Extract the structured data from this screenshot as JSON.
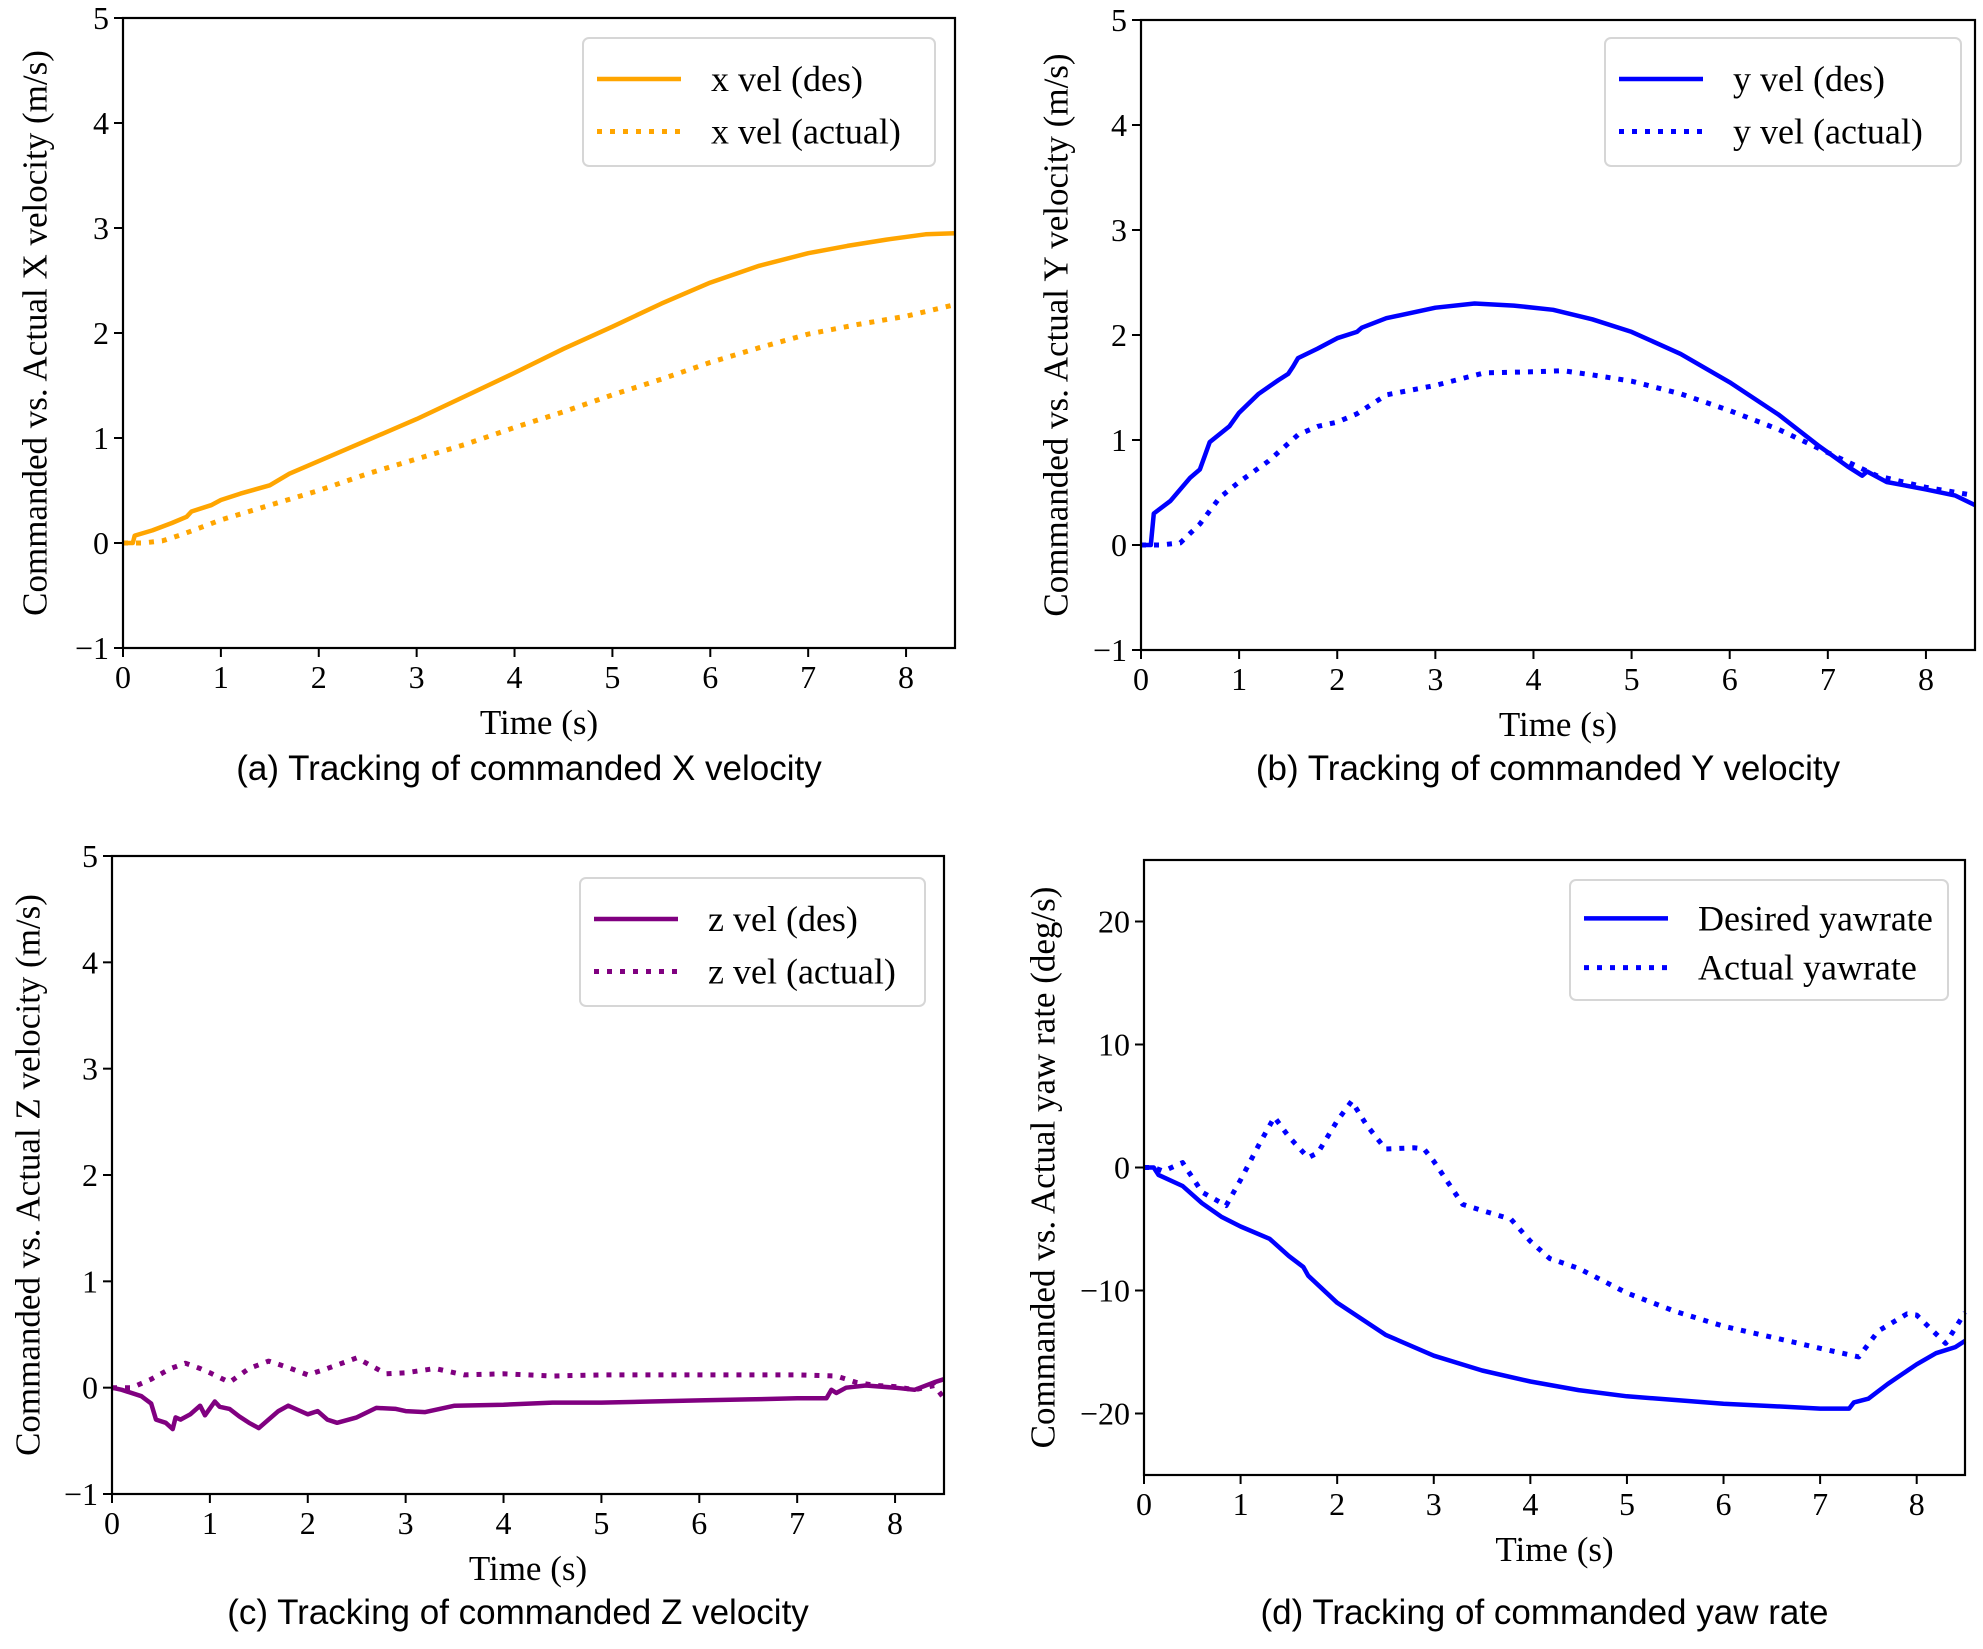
{
  "chart_data": [
    {
      "id": "a",
      "type": "line",
      "caption": "(a) Tracking of commanded X velocity",
      "title": "",
      "xlabel": "Time (s)",
      "ylabel": "Commanded vs. Actual X velocity (m/s)",
      "xlim": [
        0,
        8.5
      ],
      "ylim": [
        -1,
        5
      ],
      "xticks": [
        0,
        1,
        2,
        3,
        4,
        5,
        6,
        7,
        8
      ],
      "xtick_labels": [
        "0",
        "1",
        "2",
        "3",
        "4",
        "5",
        "6",
        "7",
        "8"
      ],
      "yticks": [
        -1,
        0,
        1,
        2,
        3,
        4,
        5
      ],
      "ytick_labels": [
        "−1",
        "0",
        "1",
        "2",
        "3",
        "4",
        "5"
      ],
      "grid": false,
      "legend_position": "top-right",
      "series": [
        {
          "name": "x vel (des)",
          "style": "solid",
          "color": "#ffa500",
          "x": [
            0,
            0.1,
            0.12,
            0.3,
            0.5,
            0.65,
            0.7,
            0.9,
            1.0,
            1.2,
            1.5,
            1.7,
            2.0,
            2.2,
            2.5,
            3.0,
            3.5,
            4.0,
            4.5,
            5.0,
            5.5,
            6.0,
            6.5,
            7.0,
            7.4,
            7.8,
            8.2,
            8.5
          ],
          "y": [
            0,
            0,
            0.07,
            0.12,
            0.19,
            0.25,
            0.3,
            0.36,
            0.41,
            0.47,
            0.55,
            0.66,
            0.78,
            0.86,
            0.98,
            1.18,
            1.4,
            1.62,
            1.85,
            2.06,
            2.28,
            2.48,
            2.64,
            2.76,
            2.83,
            2.89,
            2.94,
            2.95
          ]
        },
        {
          "name": "x vel (actual)",
          "style": "dotted",
          "color": "#ffa500",
          "x": [
            0,
            0.2,
            0.4,
            0.6,
            0.8,
            1.0,
            1.5,
            2.0,
            2.5,
            3.0,
            3.5,
            4.0,
            4.5,
            5.0,
            5.5,
            6.0,
            6.5,
            7.0,
            7.5,
            8.0,
            8.5
          ],
          "y": [
            0,
            0,
            0.02,
            0.08,
            0.15,
            0.22,
            0.36,
            0.5,
            0.66,
            0.8,
            0.94,
            1.1,
            1.25,
            1.41,
            1.56,
            1.72,
            1.86,
            1.99,
            2.08,
            2.16,
            2.27
          ]
        }
      ]
    },
    {
      "id": "b",
      "type": "line",
      "caption": "(b) Tracking of commanded Y velocity",
      "title": "",
      "xlabel": "Time (s)",
      "ylabel": "Commanded vs. Actual Y velocity (m/s)",
      "xlim": [
        0,
        8.5
      ],
      "ylim": [
        -1,
        5
      ],
      "xticks": [
        0,
        1,
        2,
        3,
        4,
        5,
        6,
        7,
        8
      ],
      "xtick_labels": [
        "0",
        "1",
        "2",
        "3",
        "4",
        "5",
        "6",
        "7",
        "8"
      ],
      "yticks": [
        -1,
        0,
        1,
        2,
        3,
        4,
        5
      ],
      "ytick_labels": [
        "−1",
        "0",
        "1",
        "2",
        "3",
        "4",
        "5"
      ],
      "grid": false,
      "legend_position": "top-right",
      "series": [
        {
          "name": "y vel (des)",
          "style": "solid",
          "color": "#0000ff",
          "x": [
            0,
            0.1,
            0.13,
            0.3,
            0.5,
            0.6,
            0.65,
            0.7,
            0.9,
            1.0,
            1.2,
            1.4,
            1.5,
            1.55,
            1.6,
            1.8,
            2.0,
            2.2,
            2.25,
            2.5,
            3.0,
            3.4,
            3.8,
            4.2,
            4.6,
            5.0,
            5.5,
            6.0,
            6.5,
            6.9,
            7.2,
            7.35,
            7.4,
            7.6,
            8.0,
            8.3,
            8.5
          ],
          "y": [
            0,
            0,
            0.3,
            0.42,
            0.64,
            0.72,
            0.85,
            0.98,
            1.13,
            1.26,
            1.44,
            1.57,
            1.63,
            1.7,
            1.78,
            1.87,
            1.97,
            2.03,
            2.07,
            2.16,
            2.26,
            2.3,
            2.28,
            2.24,
            2.15,
            2.03,
            1.82,
            1.55,
            1.24,
            0.95,
            0.75,
            0.66,
            0.7,
            0.6,
            0.53,
            0.47,
            0.38
          ]
        },
        {
          "name": "y vel (actual)",
          "style": "dotted",
          "color": "#0000ff",
          "x": [
            0,
            0.2,
            0.4,
            0.6,
            0.8,
            1.0,
            1.3,
            1.6,
            1.8,
            2.0,
            2.2,
            2.5,
            3.0,
            3.5,
            4.0,
            4.3,
            4.6,
            5.0,
            5.5,
            6.0,
            6.5,
            7.0,
            7.5,
            8.0,
            8.5
          ],
          "y": [
            0,
            0,
            0.02,
            0.2,
            0.45,
            0.6,
            0.8,
            1.05,
            1.13,
            1.17,
            1.25,
            1.43,
            1.52,
            1.64,
            1.65,
            1.66,
            1.62,
            1.56,
            1.44,
            1.28,
            1.1,
            0.88,
            0.66,
            0.55,
            0.47
          ]
        }
      ]
    },
    {
      "id": "c",
      "type": "line",
      "caption": "(c) Tracking of commanded Z velocity",
      "title": "",
      "xlabel": "Time (s)",
      "ylabel": "Commanded vs. Actual Z velocity (m/s)",
      "xlim": [
        0,
        8.5
      ],
      "ylim": [
        -1,
        5
      ],
      "xticks": [
        0,
        1,
        2,
        3,
        4,
        5,
        6,
        7,
        8
      ],
      "xtick_labels": [
        "0",
        "1",
        "2",
        "3",
        "4",
        "5",
        "6",
        "7",
        "8"
      ],
      "yticks": [
        -1,
        0,
        1,
        2,
        3,
        4,
        5
      ],
      "ytick_labels": [
        "−1",
        "0",
        "1",
        "2",
        "3",
        "4",
        "5"
      ],
      "grid": false,
      "legend_position": "top-right",
      "series": [
        {
          "name": "z vel (des)",
          "style": "solid",
          "color": "#800080",
          "x": [
            0,
            0.1,
            0.3,
            0.4,
            0.45,
            0.55,
            0.62,
            0.65,
            0.7,
            0.8,
            0.9,
            0.95,
            1.05,
            1.1,
            1.2,
            1.3,
            1.4,
            1.5,
            1.6,
            1.7,
            1.8,
            1.9,
            2.0,
            2.1,
            2.2,
            2.3,
            2.5,
            2.7,
            2.9,
            3.0,
            3.2,
            3.5,
            4.0,
            4.5,
            5.0,
            5.5,
            6.0,
            6.5,
            7.0,
            7.3,
            7.35,
            7.4,
            7.5,
            7.7,
            8.0,
            8.2,
            8.4,
            8.5
          ],
          "y": [
            0,
            -0.02,
            -0.08,
            -0.15,
            -0.3,
            -0.33,
            -0.39,
            -0.28,
            -0.3,
            -0.25,
            -0.17,
            -0.26,
            -0.13,
            -0.18,
            -0.2,
            -0.27,
            -0.33,
            -0.38,
            -0.3,
            -0.22,
            -0.17,
            -0.21,
            -0.25,
            -0.22,
            -0.3,
            -0.33,
            -0.28,
            -0.19,
            -0.2,
            -0.22,
            -0.23,
            -0.17,
            -0.16,
            -0.14,
            -0.14,
            -0.13,
            -0.12,
            -0.11,
            -0.1,
            -0.1,
            -0.02,
            -0.05,
            0.0,
            0.02,
            0.0,
            -0.02,
            0.05,
            0.08
          ]
        },
        {
          "name": "z vel (actual)",
          "style": "dotted",
          "color": "#800080",
          "x": [
            0,
            0.2,
            0.4,
            0.6,
            0.75,
            0.9,
            1.0,
            1.2,
            1.4,
            1.6,
            1.8,
            2.0,
            2.2,
            2.5,
            2.8,
            3.0,
            3.3,
            3.6,
            4.0,
            4.5,
            5.0,
            5.5,
            6.0,
            6.5,
            7.0,
            7.4,
            7.6,
            7.8,
            8.0,
            8.2,
            8.4,
            8.5
          ],
          "y": [
            0,
            0.0,
            0.08,
            0.18,
            0.23,
            0.18,
            0.14,
            0.05,
            0.18,
            0.25,
            0.19,
            0.12,
            0.18,
            0.28,
            0.13,
            0.14,
            0.18,
            0.12,
            0.13,
            0.11,
            0.12,
            0.12,
            0.12,
            0.12,
            0.12,
            0.11,
            0.05,
            0.02,
            0.01,
            -0.02,
            0.02,
            -0.1
          ]
        }
      ]
    },
    {
      "id": "d",
      "type": "line",
      "caption": "(d) Tracking of commanded yaw rate",
      "title": "",
      "xlabel": "Time (s)",
      "ylabel": "Commanded vs. Actual yaw rate (deg/s)",
      "xlim": [
        0,
        8.5
      ],
      "ylim": [
        -25,
        25
      ],
      "xticks": [
        0,
        1,
        2,
        3,
        4,
        5,
        6,
        7,
        8
      ],
      "xtick_labels": [
        "0",
        "1",
        "2",
        "3",
        "4",
        "5",
        "6",
        "7",
        "8"
      ],
      "yticks": [
        -20,
        -10,
        0,
        10,
        20
      ],
      "ytick_labels": [
        "−20",
        "−10",
        "0",
        "10",
        "20"
      ],
      "grid": false,
      "legend_position": "top-right",
      "series": [
        {
          "name": "Desired yawrate",
          "style": "solid",
          "color": "#0000ff",
          "x": [
            0,
            0.1,
            0.15,
            0.4,
            0.6,
            0.8,
            1.0,
            1.3,
            1.5,
            1.65,
            1.7,
            2.0,
            2.5,
            3.0,
            3.5,
            4.0,
            4.5,
            5.0,
            5.5,
            6.0,
            6.5,
            7.0,
            7.3,
            7.35,
            7.5,
            7.7,
            8.0,
            8.2,
            8.4,
            8.5
          ],
          "y": [
            0,
            0,
            -0.6,
            -1.5,
            -2.9,
            -4.0,
            -4.8,
            -5.8,
            -7.2,
            -8.1,
            -8.8,
            -11.0,
            -13.6,
            -15.3,
            -16.5,
            -17.4,
            -18.1,
            -18.6,
            -18.9,
            -19.2,
            -19.4,
            -19.6,
            -19.6,
            -19.1,
            -18.8,
            -17.6,
            -16.0,
            -15.1,
            -14.6,
            -14.1
          ]
        },
        {
          "name": "Actual yawrate",
          "style": "dotted",
          "color": "#0000ff",
          "x": [
            0,
            0.1,
            0.2,
            0.4,
            0.6,
            0.85,
            1.0,
            1.2,
            1.35,
            1.5,
            1.7,
            1.8,
            2.0,
            2.15,
            2.3,
            2.5,
            2.8,
            2.9,
            3.0,
            3.3,
            3.5,
            3.8,
            4.0,
            4.2,
            4.5,
            5.0,
            5.5,
            6.0,
            6.5,
            7.0,
            7.4,
            7.6,
            7.9,
            8.0,
            8.3,
            8.5
          ],
          "y": [
            0,
            0,
            -0.3,
            0.4,
            -2.0,
            -3.1,
            -1.0,
            2.0,
            4.1,
            2.5,
            0.8,
            1.2,
            3.8,
            5.4,
            3.5,
            1.5,
            1.6,
            1.5,
            0.5,
            -3.0,
            -3.5,
            -4.2,
            -6.0,
            -7.4,
            -8.2,
            -10.2,
            -11.7,
            -12.9,
            -13.8,
            -14.7,
            -15.4,
            -13.3,
            -11.9,
            -12.0,
            -14.3,
            -11.8
          ]
        }
      ]
    }
  ]
}
